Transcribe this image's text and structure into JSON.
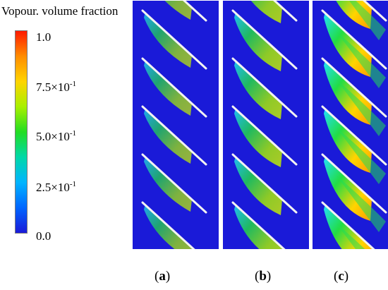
{
  "legend": {
    "title": "Vopour. volume fraction",
    "ticks": [
      "1.0",
      "7.5×10",
      "5.0×10",
      "2.5×10",
      "0.0"
    ],
    "exponent": "-1",
    "colors": [
      "#ff1a00",
      "#ff8c00",
      "#ffd400",
      "#a8f000",
      "#22dd22",
      "#00d8a8",
      "#00b4ff",
      "#0066ff",
      "#1a1ad8"
    ]
  },
  "panels": [
    {
      "label": "a",
      "cavity_level": 0.35
    },
    {
      "label": "b",
      "cavity_level": 0.6
    },
    {
      "label": "c",
      "cavity_level": 1.0
    }
  ],
  "colors": {
    "background": "#1a1ad8",
    "blade": "#f2f2f2"
  }
}
